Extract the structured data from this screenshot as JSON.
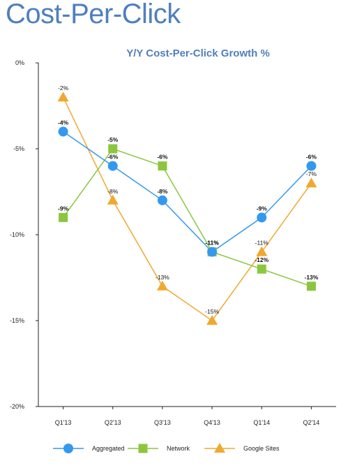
{
  "page": {
    "title": "Cost-Per-Click"
  },
  "chart_data": {
    "type": "line",
    "title": "Y/Y Cost-Per-Click Growth %",
    "xlabel": "",
    "ylabel": "",
    "categories": [
      "Q1'13",
      "Q2'13",
      "Q3'13",
      "Q4'13",
      "Q1'14",
      "Q2'14"
    ],
    "ylim": [
      -20,
      0
    ],
    "yticks": [
      0,
      -5,
      -10,
      -15,
      -20
    ],
    "ytick_labels": [
      "0%",
      "-5%",
      "-10%",
      "-15%",
      "-20%"
    ],
    "grid": false,
    "legend_position": "bottom",
    "series": [
      {
        "name": "Aggregated",
        "color": "#3399ee",
        "marker": "circle",
        "values": [
          -4,
          -6,
          -8,
          -11,
          -9,
          -6
        ],
        "labels": [
          "-4%",
          "-6%",
          "-8%",
          "-11%",
          "-9%",
          "-6%"
        ]
      },
      {
        "name": "Network",
        "color": "#8cc63f",
        "marker": "square",
        "values": [
          -9,
          -5,
          -6,
          -11,
          -12,
          -13
        ],
        "labels": [
          "-9%",
          "-5%",
          "-6%",
          "-11%",
          "-12%",
          "-13%"
        ]
      },
      {
        "name": "Google Sites",
        "color": "#f0a830",
        "marker": "triangle",
        "values": [
          -2,
          -8,
          -13,
          -15,
          -11,
          -7
        ],
        "labels": [
          "-2%",
          "-8%",
          "-13%",
          "-15%",
          "-11%",
          "-7%"
        ]
      }
    ]
  }
}
